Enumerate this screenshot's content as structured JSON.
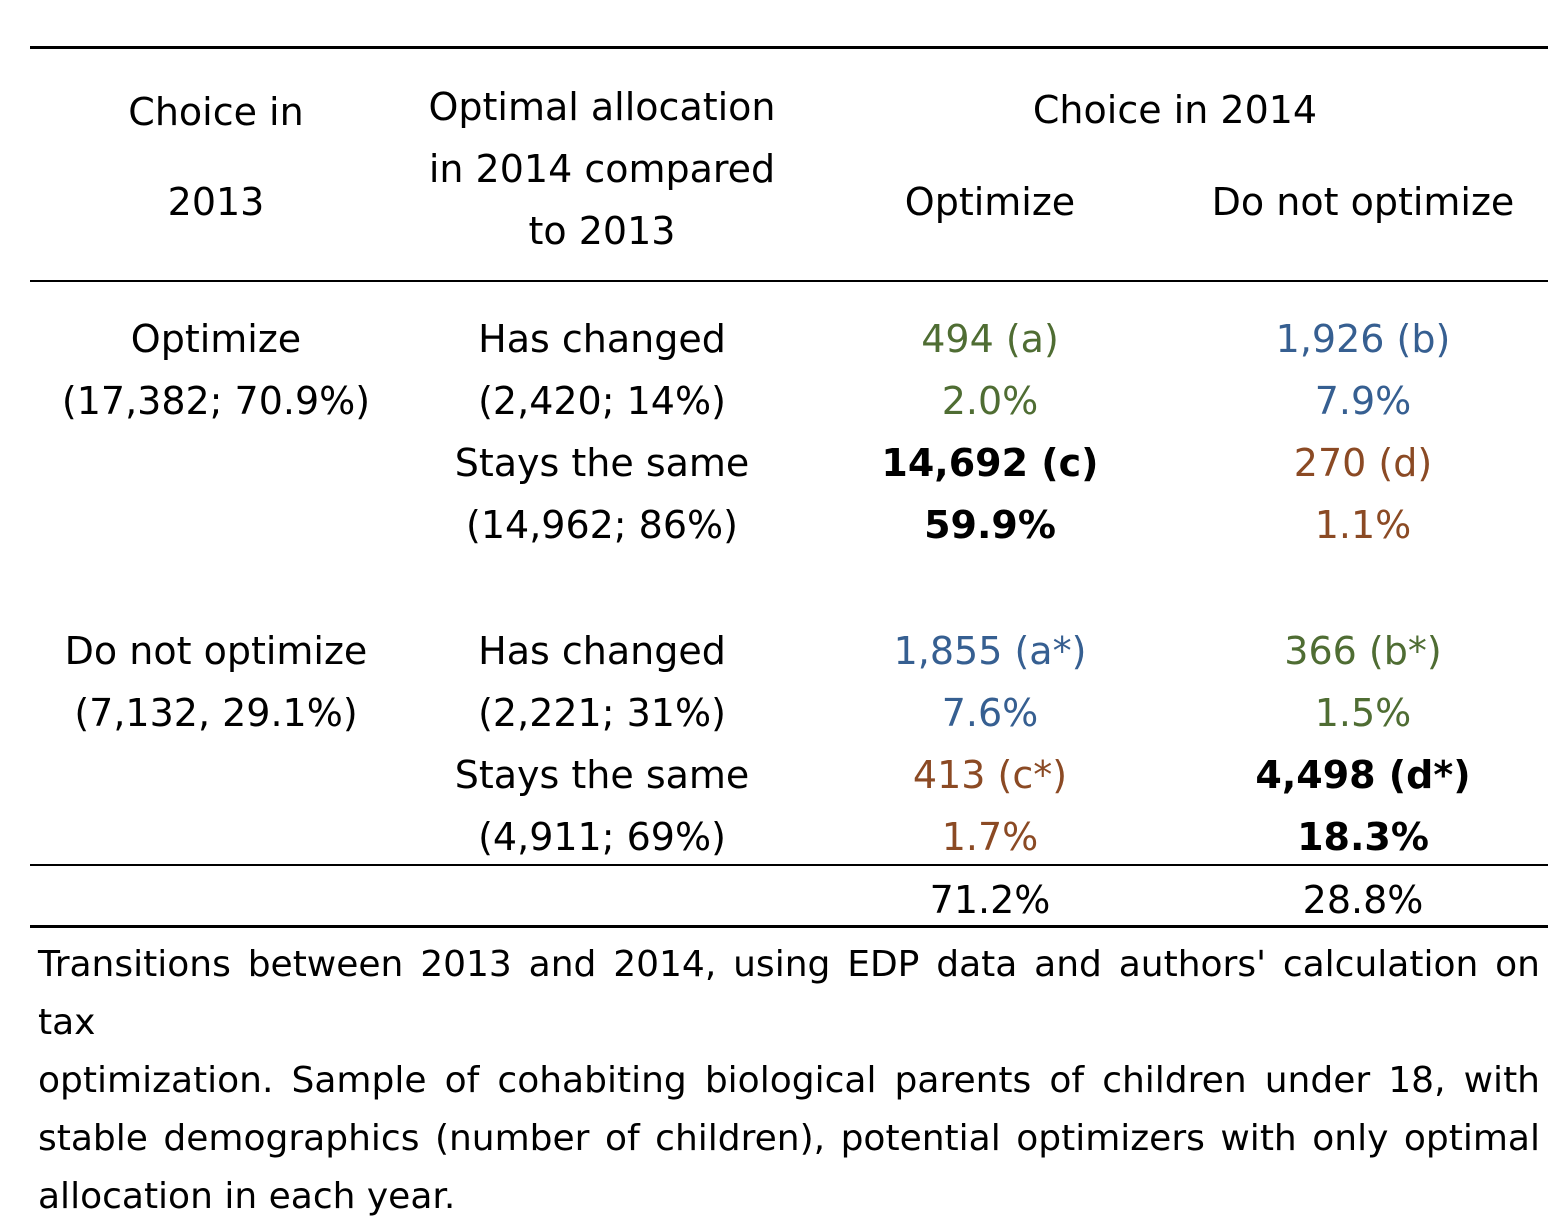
{
  "colors": {
    "green": "#4f6d33",
    "blue": "#365f91",
    "brown": "#8b4a24",
    "black": "#000000"
  },
  "header": {
    "col1_line1": "Choice in",
    "col1_line2": "2013",
    "col2_line1": "Optimal allocation",
    "col2_line2": "in 2014 compared",
    "col2_line3": "to 2013",
    "group_label": "Choice in 2014",
    "col3": "Optimize",
    "col4": "Do not optimize"
  },
  "groups": [
    {
      "label": "Optimize",
      "sub": "(17,382; 70.9%)",
      "rows": [
        {
          "label": "Has changed",
          "sub": "(2,420; 14%)",
          "opt_count": "494 (a)",
          "opt_pct": "2.0%",
          "notopt_count": "1,926 (b)",
          "notopt_pct": "7.9%"
        },
        {
          "label": "Stays the same",
          "sub": "(14,962; 86%)",
          "opt_count": "14,692 (c)",
          "opt_pct": "59.9%",
          "notopt_count": "270 (d)",
          "notopt_pct": "1.1%"
        }
      ]
    },
    {
      "label": "Do not optimize",
      "sub": "(7,132, 29.1%)",
      "rows": [
        {
          "label": "Has changed",
          "sub": "(2,221; 31%)",
          "opt_count": "1,855 (a*)",
          "opt_pct": "7.6%",
          "notopt_count": "366 (b*)",
          "notopt_pct": "1.5%"
        },
        {
          "label": "Stays the same",
          "sub": "(4,911; 69%)",
          "opt_count": "413 (c*)",
          "opt_pct": "1.7%",
          "notopt_count": "4,498 (d*)",
          "notopt_pct": "18.3%"
        }
      ]
    }
  ],
  "totals": {
    "optimize": "71.2%",
    "not_optimize": "28.8%"
  },
  "note": {
    "line1": "Transitions between 2013 and 2014, using EDP data and authors' calculation on tax",
    "line2": "optimization. Sample of cohabiting biological parents of children under 18, with",
    "line3": "stable demographics (number of children), potential optimizers with only optimal",
    "line4": "allocation in each year."
  }
}
